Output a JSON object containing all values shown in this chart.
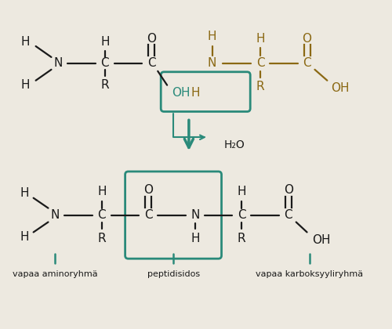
{
  "bg_color": "#ede9e0",
  "black": "#1a1a1a",
  "teal": "#2a8a7a",
  "brown": "#8B6914",
  "label_amino": "vapaa aminoryhmä",
  "label_peptide": "peptidisidos",
  "label_carboxyl": "vapaa karboksyyliryhmä",
  "h2o_label": "H₂O"
}
